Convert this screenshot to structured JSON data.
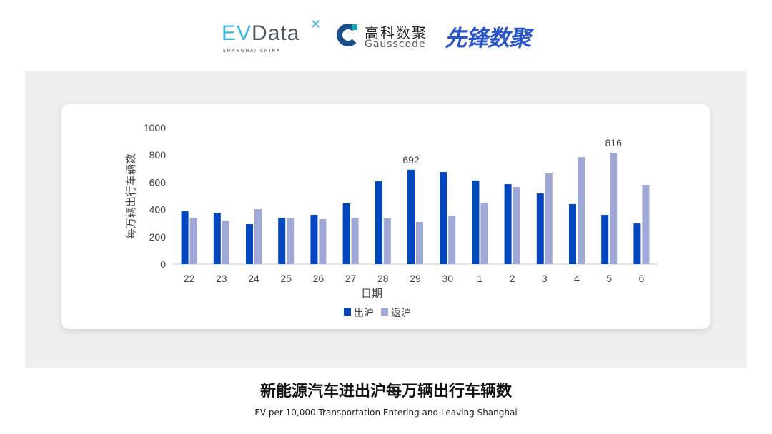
{
  "logos": {
    "evdata": "EVData",
    "evdata_sub": "SHANGHAI CHINA",
    "gauss_cn": "高科数聚",
    "gauss_en": "Gausscode",
    "xianfeng": "先锋数聚"
  },
  "caption": {
    "title": "新能源汽车进出沪每万辆出行车辆数",
    "subtitle": "EV per 10,000 Transportation Entering and Leaving Shanghai"
  },
  "chart_data": {
    "type": "bar",
    "xlabel": "日期",
    "ylabel": "每万辆出行车辆数",
    "ylim": [
      0,
      1000
    ],
    "yticks": [
      0,
      200,
      400,
      600,
      800,
      1000
    ],
    "categories": [
      "22",
      "23",
      "24",
      "25",
      "26",
      "27",
      "28",
      "29",
      "30",
      "1",
      "2",
      "3",
      "4",
      "5",
      "6"
    ],
    "series": [
      {
        "name": "出沪",
        "color": "#0046be",
        "values": [
          387,
          377,
          293,
          340,
          361,
          445,
          607,
          692,
          675,
          613,
          586,
          518,
          440,
          361,
          298
        ]
      },
      {
        "name": "返沪",
        "color": "#a0a8d8",
        "values": [
          340,
          320,
          403,
          335,
          330,
          340,
          335,
          309,
          356,
          450,
          565,
          665,
          785,
          816,
          581
        ]
      }
    ],
    "data_labels": [
      {
        "series": "出沪",
        "category": "29",
        "text": "692"
      },
      {
        "series": "返沪",
        "category": "5",
        "text": "816"
      }
    ],
    "grid": false,
    "legend": "bottom"
  }
}
